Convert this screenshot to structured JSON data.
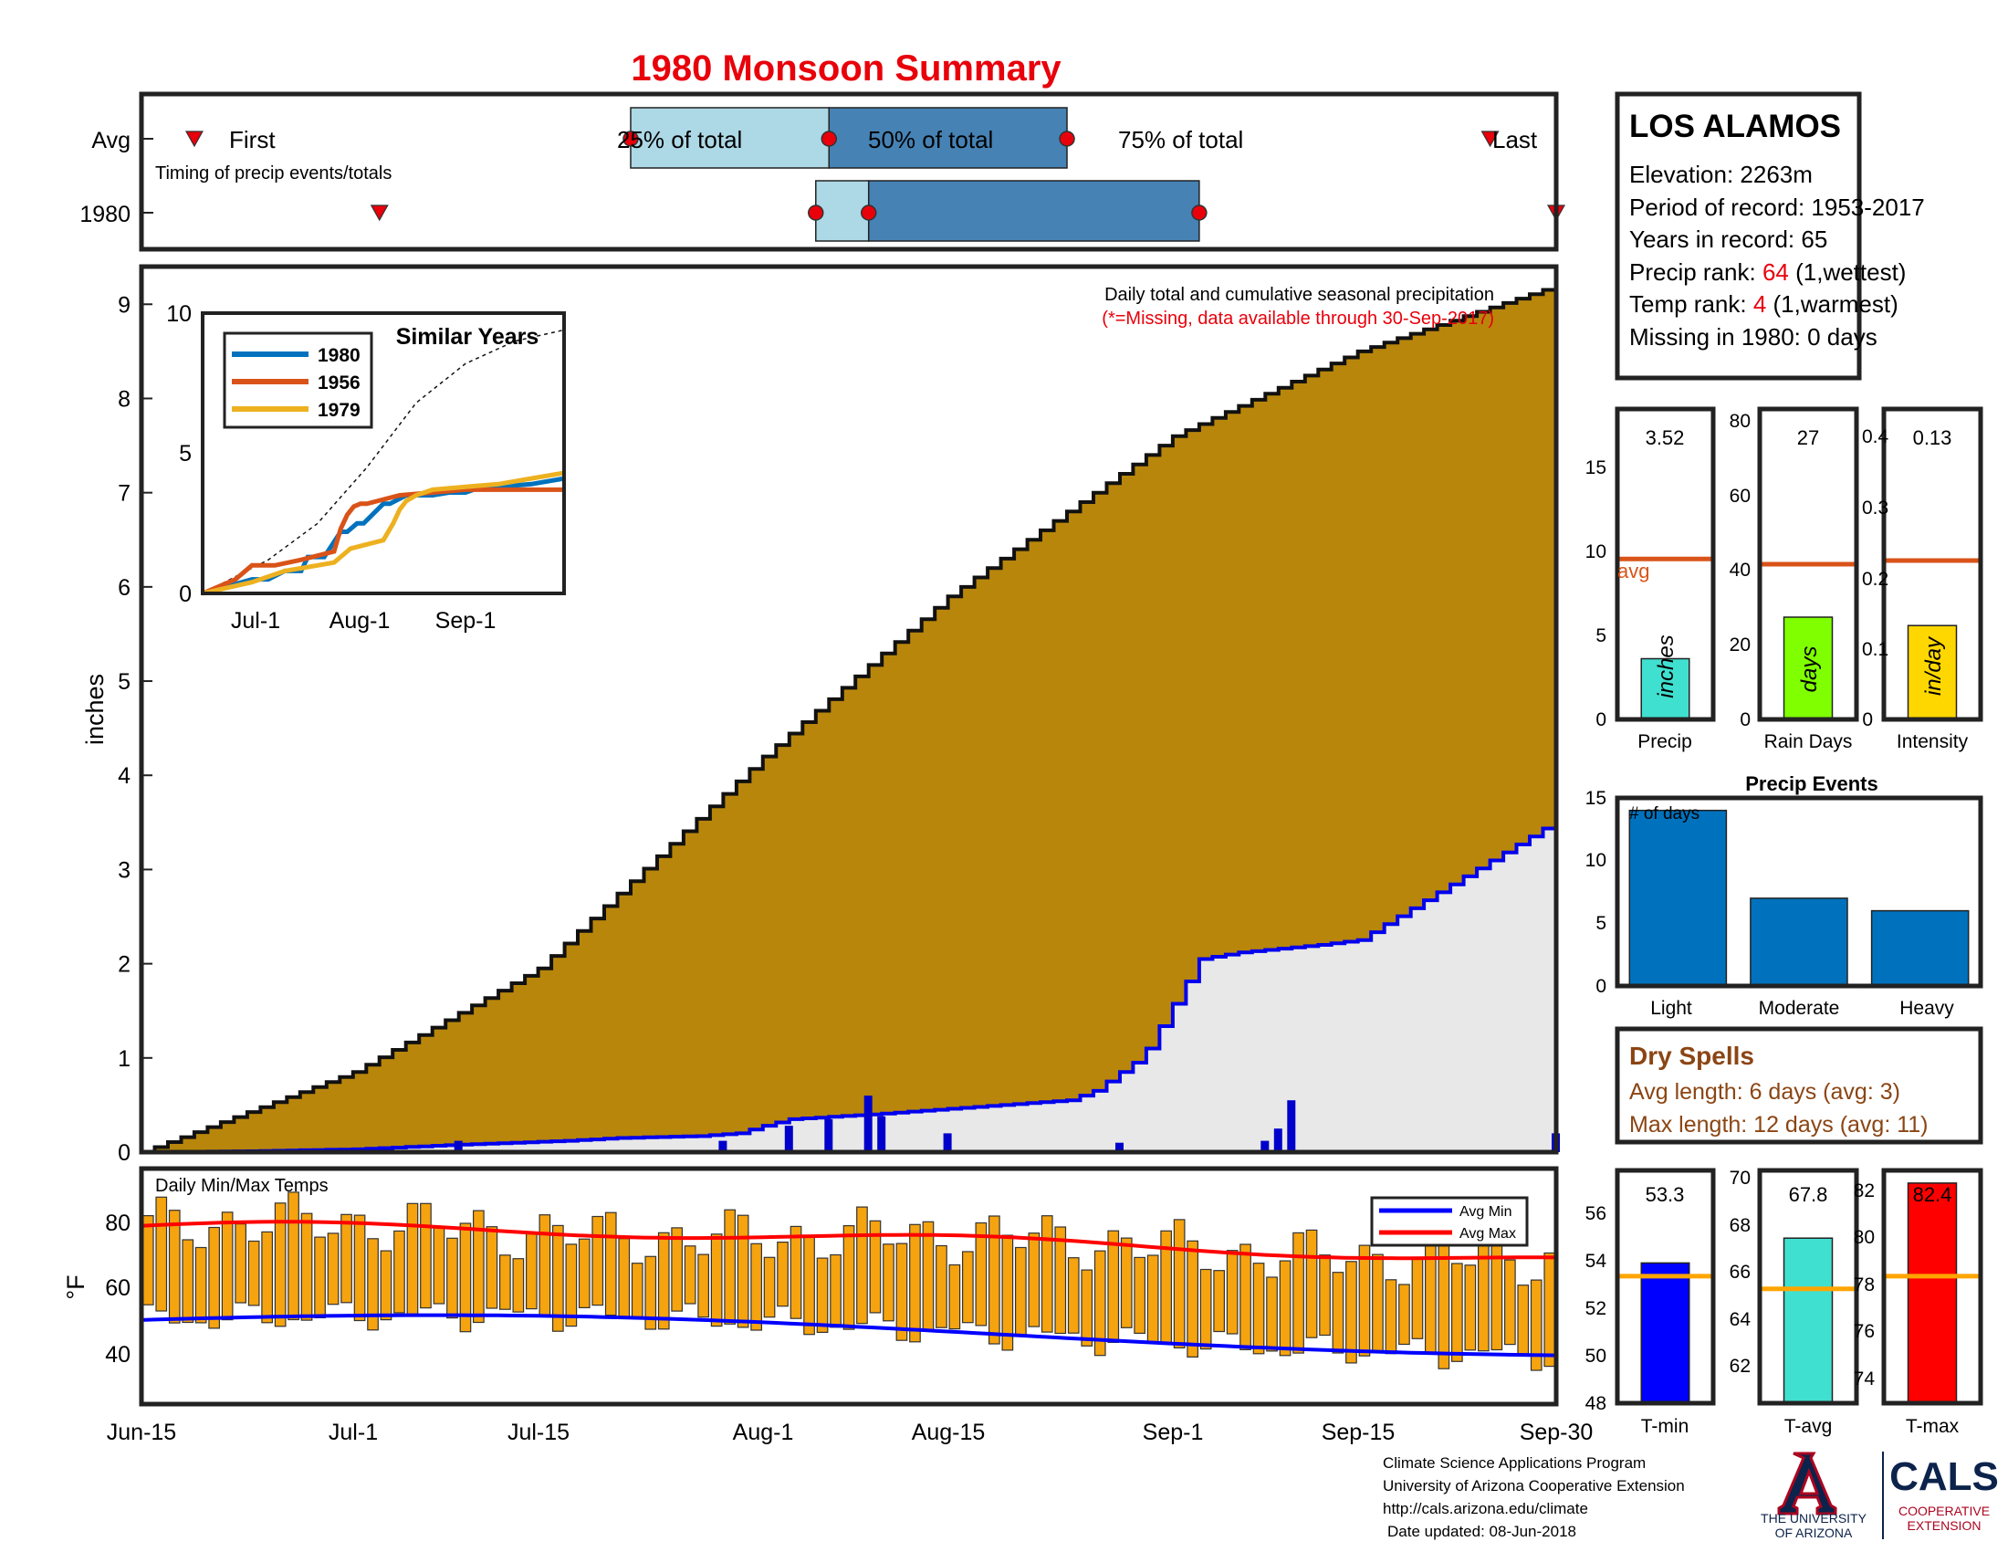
{
  "title": "1980 Monsoon Summary",
  "timing": {
    "caption": "Timing of precip events/totals",
    "row_avg": "Avg",
    "row_year": "1980",
    "first_label": "First",
    "p25_label": "25% of total",
    "p50_label": "50% of total",
    "p75_label": "75% of total",
    "last_label": "Last",
    "avg_first": "Jun-19",
    "avg_p25": "Jul-22",
    "avg_p50": "Aug-6",
    "avg_p75": "Aug-24",
    "avg_last": "Sep-25",
    "yr_first": "Jul-3",
    "yr_p25": "Aug-5",
    "yr_p50": "Aug-9",
    "yr_p75": "Sep-3",
    "yr_last": "Sep-30"
  },
  "station": {
    "name": "LOS ALAMOS",
    "elevation": "Elevation: 2263m",
    "period": "Period of record: 1953-2017",
    "years": "Years in record: 65",
    "precip_rank_prefix": "Precip rank: ",
    "precip_rank_value": "64",
    "precip_rank_suffix": " (1,wettest)",
    "temp_rank_prefix": "Temp rank: ",
    "temp_rank_value": "4",
    "temp_rank_suffix": " (1,warmest)",
    "missing": "Missing in 1980: 0 days"
  },
  "main": {
    "note1": "Daily total and cumulative seasonal precipitation",
    "note2": "(*=Missing, data available through 30-Sep-2017)",
    "ylabel": "inches",
    "yticks": [
      "0",
      "1",
      "2",
      "3",
      "4",
      "5",
      "6",
      "7",
      "8",
      "9"
    ],
    "xticks": [
      "Jun-15",
      "Jul-1",
      "Jul-15",
      "Aug-1",
      "Aug-15",
      "Sep-1",
      "Sep-15",
      "Sep-30"
    ]
  },
  "inset": {
    "title": "Similar Years",
    "yticks": [
      "0",
      "5",
      "10"
    ],
    "xticks": [
      "Jul-1",
      "Aug-1",
      "Sep-1"
    ],
    "legend": [
      "1980",
      "1956",
      "1979"
    ]
  },
  "temps": {
    "title": "Daily Min/Max Temps",
    "ylabel": "°F",
    "yticks": [
      "40",
      "60",
      "80"
    ],
    "legend_min": "Avg Min",
    "legend_max": "Avg Max"
  },
  "mini": {
    "precip": {
      "label": "Precip",
      "value": "3.52",
      "unit": "inches",
      "avg_text": "avg",
      "yticks": [
        "0",
        "5",
        "10",
        "15"
      ]
    },
    "raindays": {
      "label": "Rain Days",
      "value": "27",
      "unit": "days",
      "yticks": [
        "0",
        "20",
        "40",
        "60",
        "80"
      ]
    },
    "intensity": {
      "label": "Intensity",
      "value": "0.13",
      "unit": "in/day",
      "yticks": [
        "0",
        "0.1",
        "0.2",
        "0.3",
        "0.4"
      ]
    }
  },
  "events": {
    "title": "Precip Events",
    "note": "# of days",
    "categories": [
      "Light",
      "Moderate",
      "Heavy"
    ],
    "yticks": [
      "0",
      "5",
      "10",
      "15"
    ]
  },
  "dry": {
    "title": "Dry Spells",
    "avg": "Avg length: 6 days (avg: 3)",
    "max": "Max length: 12 days (avg: 11)"
  },
  "tbars": {
    "tmin": {
      "label": "T-min",
      "value": "53.3",
      "yticks": [
        "48",
        "50",
        "52",
        "54",
        "56"
      ]
    },
    "tavg": {
      "label": "T-avg",
      "value": "67.8",
      "yticks": [
        "62",
        "64",
        "66",
        "68",
        "70"
      ]
    },
    "tmax": {
      "label": "T-max",
      "value": "82.4",
      "yticks": [
        "74",
        "76",
        "78",
        "80",
        "82"
      ]
    }
  },
  "footer": {
    "line1": "Climate Science Applications Program",
    "line2": "University of Arizona Cooperative Extension",
    "line3": "http://cals.arizona.edu/climate",
    "line4": "Date updated: 08-Jun-2018"
  },
  "logos": {
    "ua_line1": "THE UNIVERSITY",
    "ua_line2": "OF ARIZONA",
    "cals": "CALS",
    "cals_line1": "COOPERATIVE",
    "cals_line2": "EXTENSION"
  },
  "colors": {
    "cumulative_avg": "#b8860b",
    "cumulative_year": "#e8e8e8",
    "year_line": "#0000ee",
    "daily_bar": "#0000cc",
    "temp_bar": "#f5a30f",
    "avg_min": "#0000ff",
    "avg_max": "#ff0000",
    "avg_ref": "#d95319",
    "timing_light": "#add8e6",
    "timing_dark": "#4682b4",
    "title_red": "#e8000b",
    "dry_brown": "#8b4513"
  },
  "chart_data": [
    {
      "type": "area",
      "name_text": "main-cumulative",
      "x_unit": "day of season (0 = Jun-15, 107 = Sep-30)",
      "avg_cumulative": {
        "x": [
          0,
          16,
          30,
          47,
          61,
          78,
          92,
          107
        ],
        "y": [
          0,
          0.85,
          1.95,
          4.2,
          5.9,
          7.6,
          8.5,
          9.2
        ]
      },
      "year_cumulative": {
        "x": [
          0,
          8,
          12,
          16,
          24,
          32,
          36,
          42,
          45,
          47,
          49,
          55,
          60,
          70,
          72,
          75,
          76,
          80,
          83,
          89,
          92,
          107
        ],
        "y": [
          0,
          0.01,
          0.02,
          0.03,
          0.08,
          0.12,
          0.15,
          0.17,
          0.2,
          0.28,
          0.35,
          0.4,
          0.45,
          0.55,
          0.65,
          0.95,
          1.1,
          2.05,
          2.12,
          2.2,
          2.25,
          3.52
        ]
      },
      "daily_bars": {
        "x": [
          24,
          44,
          49,
          52,
          55,
          56,
          61,
          74,
          85,
          86,
          87,
          107
        ],
        "y": [
          0.12,
          0.12,
          0.28,
          0.35,
          0.6,
          0.38,
          0.2,
          0.1,
          0.12,
          0.25,
          0.55,
          0.2
        ]
      },
      "ylim": [
        0,
        9.4
      ]
    },
    {
      "type": "line",
      "name_text": "similar-years",
      "series": [
        {
          "name": "1980",
          "x": [
            0,
            15,
            20,
            25,
            30,
            32,
            37,
            42,
            44,
            47,
            49,
            55,
            57,
            62,
            70,
            75,
            80,
            85,
            90,
            100,
            110
          ],
          "y": [
            0,
            0.5,
            0.5,
            0.8,
            0.8,
            1.3,
            1.3,
            2.2,
            2.2,
            2.5,
            2.5,
            3.2,
            3.2,
            3.5,
            3.5,
            3.6,
            3.6,
            3.8,
            3.8,
            3.9,
            4.1
          ]
        },
        {
          "name": "1956",
          "x": [
            0,
            10,
            15,
            22,
            30,
            40,
            42,
            44,
            46,
            48,
            50,
            60,
            70,
            80,
            90,
            110
          ],
          "y": [
            0,
            0.5,
            1.0,
            1.0,
            1.2,
            1.5,
            2.3,
            2.8,
            3.1,
            3.2,
            3.2,
            3.5,
            3.6,
            3.7,
            3.7,
            3.7
          ]
        },
        {
          "name": "1979",
          "x": [
            0,
            15,
            20,
            25,
            30,
            40,
            45,
            55,
            58,
            60,
            62,
            65,
            70,
            80,
            90,
            100,
            110
          ],
          "y": [
            0,
            0.4,
            0.6,
            0.8,
            0.9,
            1.1,
            1.6,
            1.9,
            2.5,
            3.0,
            3.3,
            3.5,
            3.7,
            3.8,
            3.9,
            4.1,
            4.3
          ]
        }
      ],
      "avg_line": {
        "x": [
          0,
          20,
          35,
          50,
          65,
          80,
          95,
          110
        ],
        "y": [
          0,
          1.2,
          2.5,
          4.5,
          6.8,
          8.2,
          9.0,
          9.4
        ]
      },
      "ylim": [
        0,
        10
      ]
    },
    {
      "type": "bar",
      "name_text": "precip-events",
      "categories": [
        "Light",
        "Moderate",
        "Heavy"
      ],
      "values": [
        14,
        7,
        6
      ],
      "ylim": [
        0,
        15
      ]
    },
    {
      "type": "bar",
      "name_text": "season-totals",
      "series": [
        {
          "name": "Precip",
          "value": 3.52,
          "avg": 9.3,
          "ylim": [
            0,
            18
          ]
        },
        {
          "name": "Rain Days",
          "value": 27,
          "avg": 41,
          "ylim": [
            0,
            82
          ]
        },
        {
          "name": "Intensity",
          "value": 0.13,
          "avg": 0.22,
          "ylim": [
            0,
            0.43
          ]
        },
        {
          "name": "T-min",
          "value": 53.3,
          "avg": 52.8,
          "ylim": [
            48,
            56.8
          ]
        },
        {
          "name": "T-avg",
          "value": 67.8,
          "avg": 65.4,
          "ylim": [
            60,
            71
          ]
        },
        {
          "name": "T-max",
          "value": 82.4,
          "avg": 78.0,
          "ylim": [
            72,
            83
          ]
        }
      ]
    }
  ]
}
